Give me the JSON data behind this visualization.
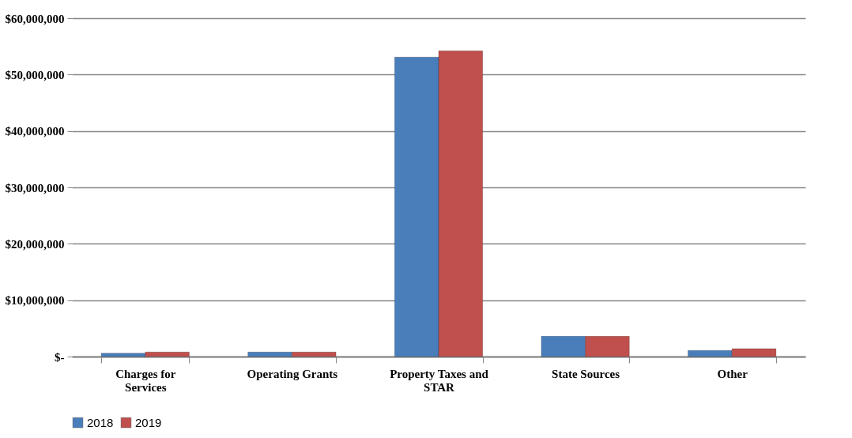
{
  "chart_data": {
    "type": "bar",
    "categories": [
      "Charges for Services",
      "Operating Grants",
      "Property Taxes and STAR",
      "State Sources",
      "Other"
    ],
    "series": [
      {
        "name": "2018",
        "color": "#4a7ebb",
        "values": [
          600000,
          800000,
          53100000,
          3600000,
          1100000
        ]
      },
      {
        "name": "2019",
        "color": "#c0504d",
        "values": [
          800000,
          800000,
          54200000,
          3600000,
          1400000
        ]
      }
    ],
    "ylim": [
      0,
      60000000
    ],
    "yticks": [
      {
        "value": 0,
        "label": "$-"
      },
      {
        "value": 10000000,
        "label": "$10,000,000"
      },
      {
        "value": 20000000,
        "label": "$20,000,000"
      },
      {
        "value": 30000000,
        "label": "$30,000,000"
      },
      {
        "value": 40000000,
        "label": "$40,000,000"
      },
      {
        "value": 50000000,
        "label": "$50,000,000"
      },
      {
        "value": 60000000,
        "label": "$60,000,000"
      }
    ],
    "grid": "y",
    "legend": "bottom"
  }
}
